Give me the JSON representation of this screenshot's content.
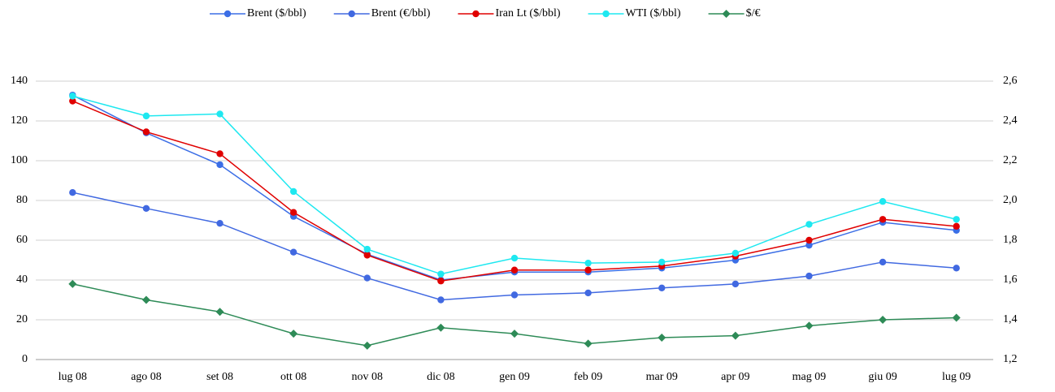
{
  "chart_data": {
    "type": "line",
    "categories": [
      "lug 08",
      "ago 08",
      "set 08",
      "ott 08",
      "nov 08",
      "dic 08",
      "gen 09",
      "feb 09",
      "mar 09",
      "apr 09",
      "mag 09",
      "giu 09",
      "lug 09"
    ],
    "series": [
      {
        "name": "Brent ($/bbl)",
        "color": "#3b6ee6",
        "marker": "circle",
        "values": [
          133,
          114,
          98,
          72,
          53,
          40,
          44,
          44,
          46,
          50,
          57.5,
          69,
          65
        ]
      },
      {
        "name": "Brent (€/bbl)",
        "color": "#4169e1",
        "marker": "circle",
        "values": [
          84,
          76,
          68.5,
          54,
          41,
          30,
          32.5,
          33.5,
          36,
          38,
          42,
          49,
          46
        ]
      },
      {
        "name": "Iran Lt ($/bbl)",
        "color": "#e00000",
        "marker": "circle",
        "values": [
          130,
          114.5,
          103.5,
          74,
          52.5,
          39.5,
          45,
          45,
          47,
          52,
          60,
          70.5,
          67
        ]
      },
      {
        "name": "WTI ($/bbl)",
        "color": "#1ee8f0",
        "marker": "circle",
        "values": [
          132.5,
          122.5,
          123.5,
          84.5,
          55.5,
          43,
          51,
          48.5,
          49,
          53.5,
          68,
          79.5,
          70.5
        ]
      },
      {
        "name": "$/€",
        "color": "#2e8b57",
        "marker": "diamond",
        "axis": "y2",
        "values": [
          1.58,
          1.5,
          1.44,
          1.33,
          1.27,
          1.36,
          1.33,
          1.28,
          1.31,
          1.32,
          1.37,
          1.4,
          1.41
        ]
      }
    ],
    "ylim": [
      0,
      140
    ],
    "yticks": [
      0,
      20,
      40,
      60,
      80,
      100,
      120,
      140
    ],
    "y2lim": [
      1.2,
      2.6
    ],
    "y2ticks": [
      {
        "value": 1.2,
        "label": "1,2"
      },
      {
        "value": 1.4,
        "label": "1,4"
      },
      {
        "value": 1.6,
        "label": "1,6"
      },
      {
        "value": 1.8,
        "label": "1,8"
      },
      {
        "value": 2.0,
        "label": "2,0"
      },
      {
        "value": 2.2,
        "label": "2,2"
      },
      {
        "value": 2.4,
        "label": "2,4"
      },
      {
        "value": 2.6,
        "label": "2,6"
      }
    ],
    "grid": true,
    "legend": "top"
  }
}
